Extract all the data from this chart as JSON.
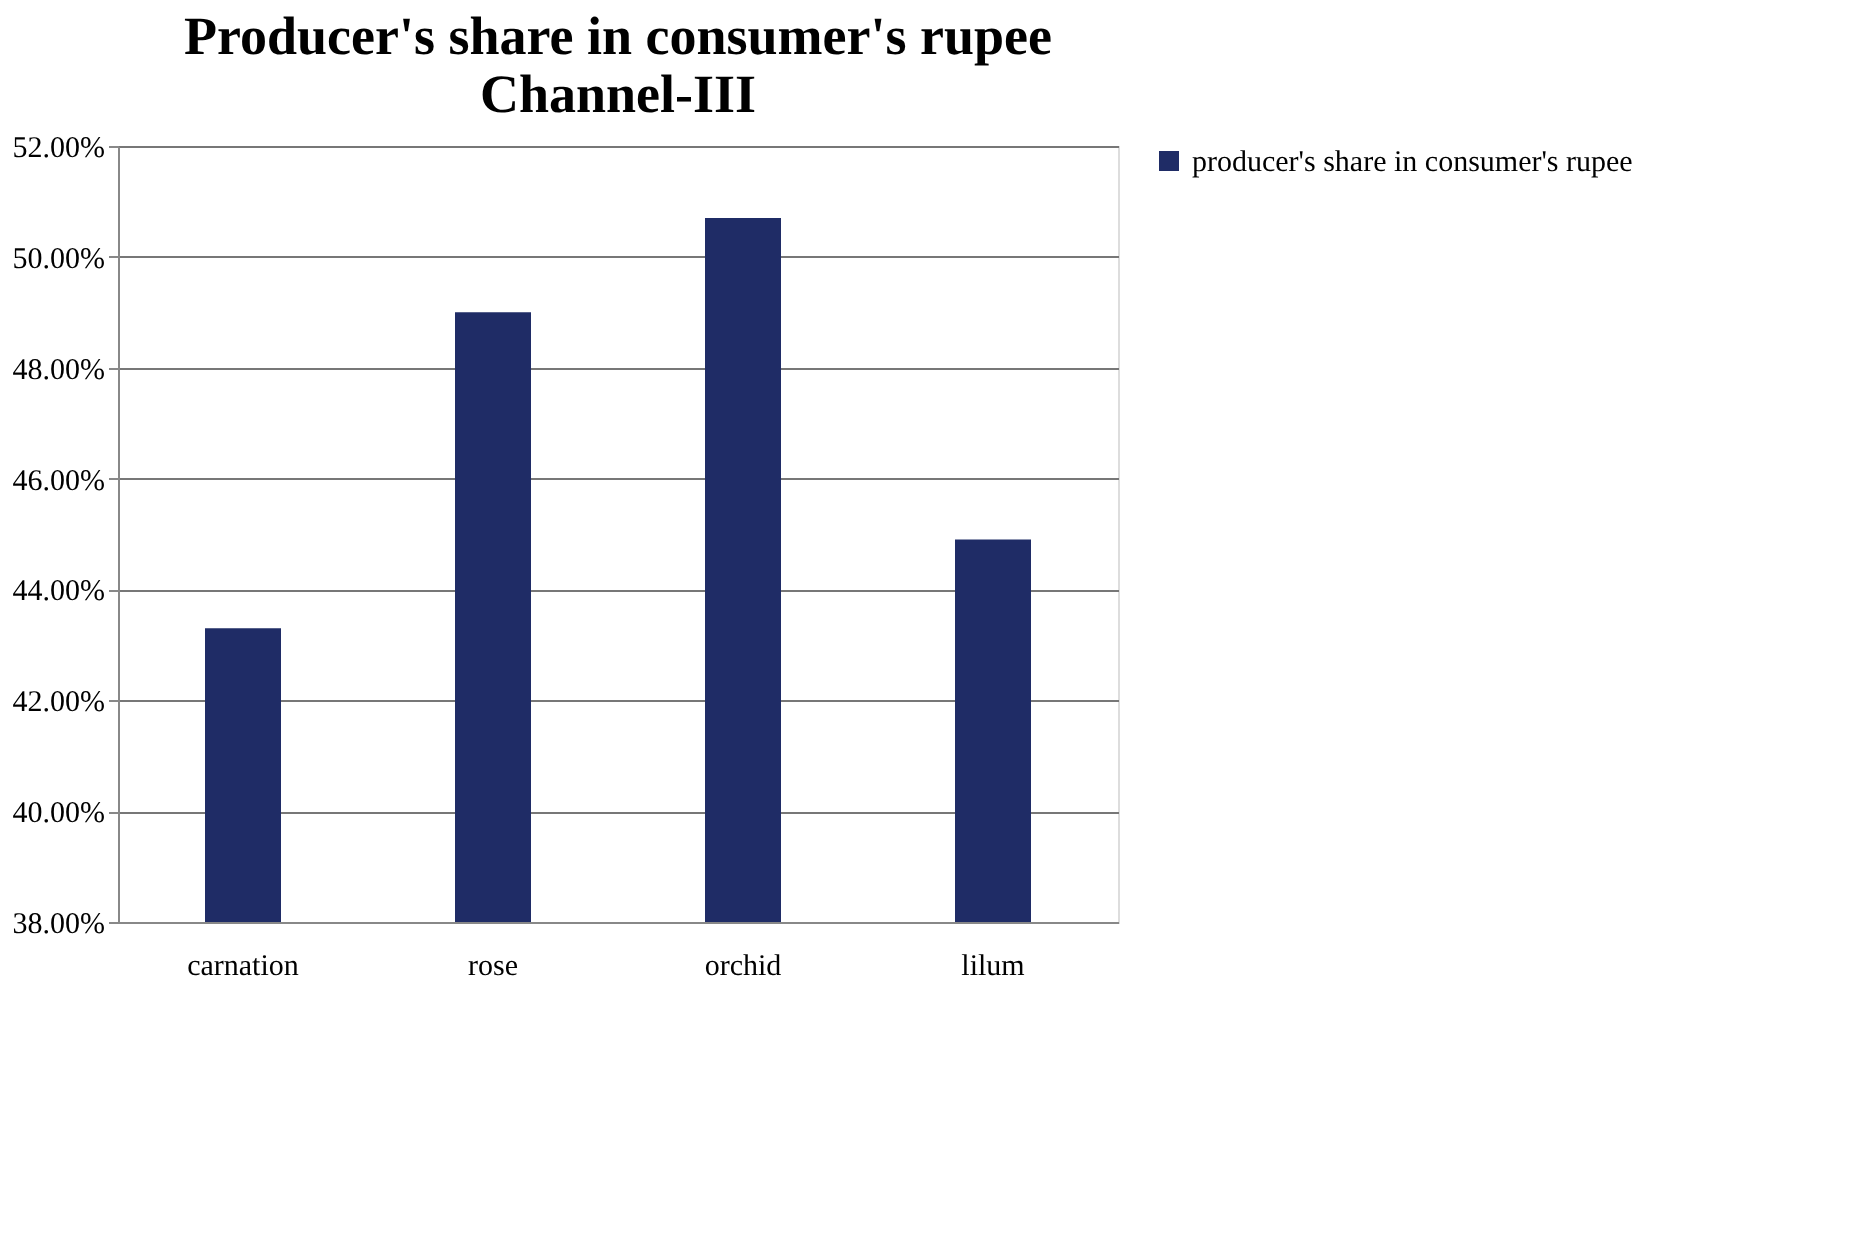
{
  "chart_data": {
    "type": "bar",
    "title": [
      "Producer's share in consumer's rupee",
      "Channel-III"
    ],
    "categories": [
      "carnation",
      "rose",
      "orchid",
      "lilum"
    ],
    "series": [
      {
        "name": "producer's share in consumer's rupee",
        "color": "#1f2c66",
        "values": [
          43.3,
          49.0,
          50.7,
          44.9
        ]
      }
    ],
    "ylim": [
      38,
      52
    ],
    "yticks": [
      {
        "value": 38,
        "label": "38.00%"
      },
      {
        "value": 40,
        "label": "40.00%"
      },
      {
        "value": 42,
        "label": "42.00%"
      },
      {
        "value": 44,
        "label": "44.00%"
      },
      {
        "value": 46,
        "label": "46.00%"
      },
      {
        "value": 48,
        "label": "48.00%"
      },
      {
        "value": 50,
        "label": "50.00%"
      },
      {
        "value": 52,
        "label": "52.00%"
      }
    ],
    "grid": "y",
    "legend": "right"
  }
}
